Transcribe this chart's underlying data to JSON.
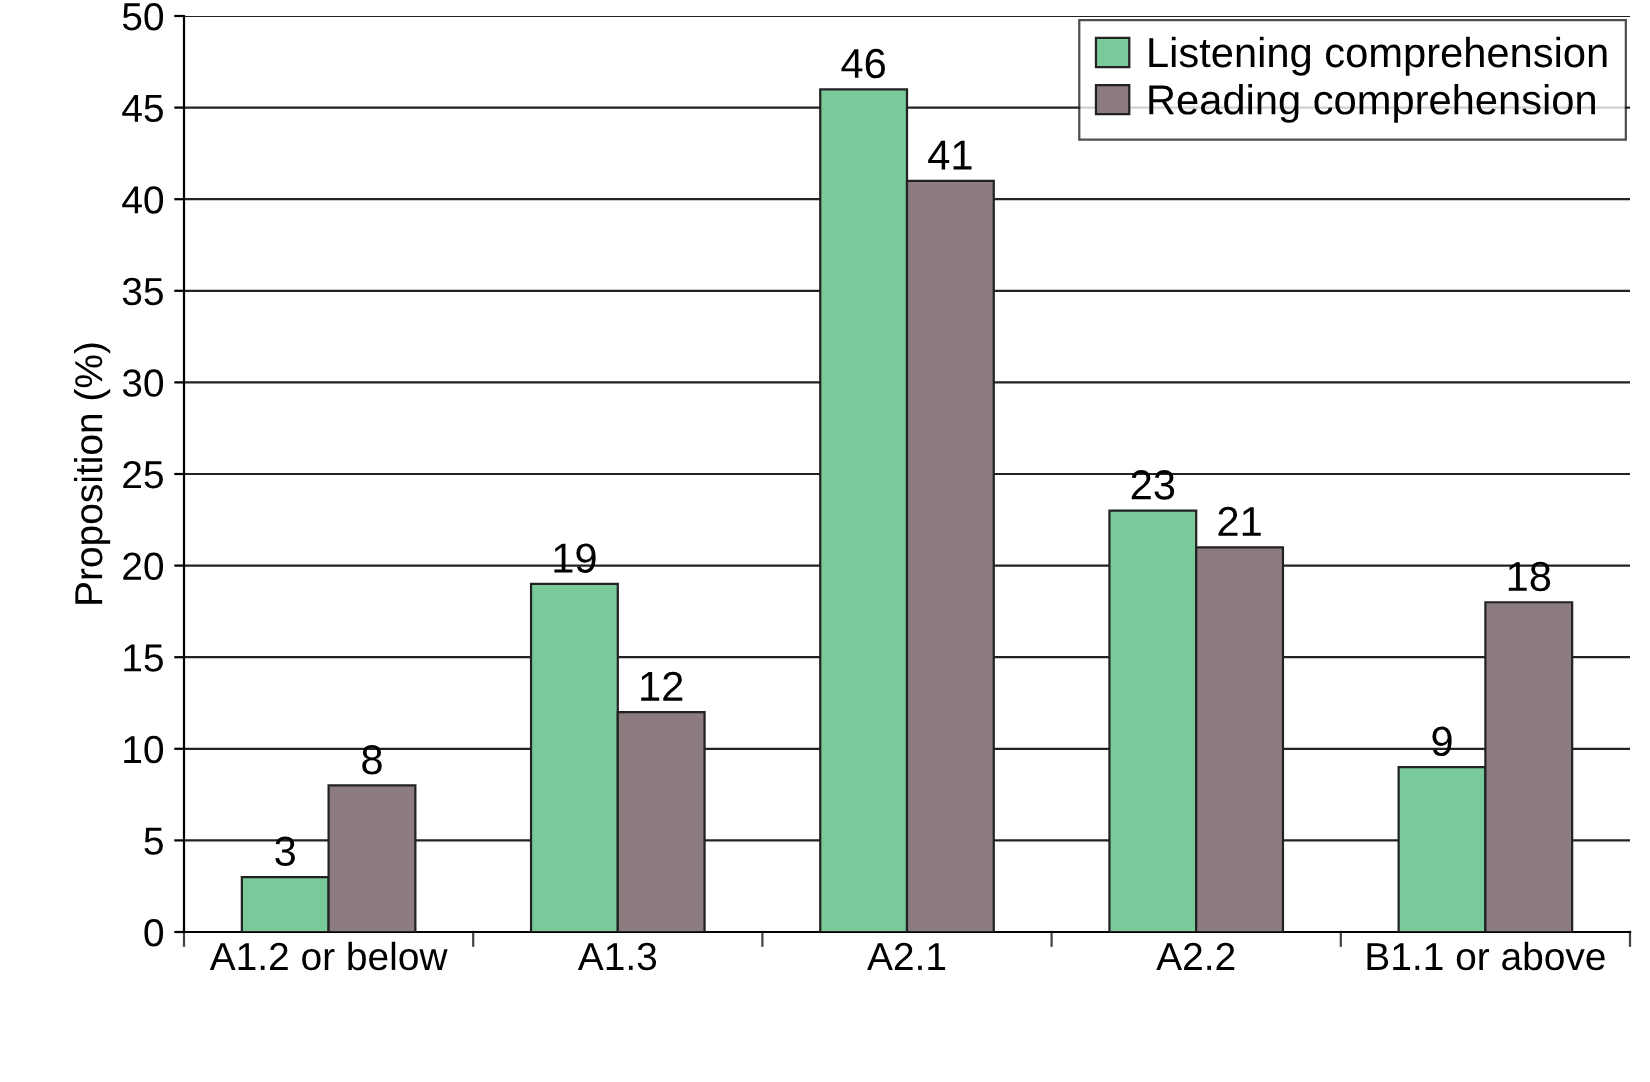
{
  "chart_data": {
    "type": "bar",
    "ylabel": "Proposition (%)",
    "categories": [
      "A1.2 or below",
      "A1.3",
      "A2.1",
      "A2.2",
      "B1.1 or above"
    ],
    "series": [
      {
        "name": "Listening comprehension",
        "color": "#79c99a",
        "values": [
          3,
          19,
          46,
          23,
          9
        ]
      },
      {
        "name": "Reading comprehension",
        "color": "#8c7b7f",
        "values": [
          8,
          12,
          41,
          21,
          18
        ]
      }
    ],
    "ylim": [
      0,
      50
    ],
    "yticks": [
      0,
      5,
      10,
      15,
      20,
      25,
      30,
      35,
      40,
      45,
      50
    ],
    "grid": "y",
    "legend": "top right",
    "data_labels": true
  }
}
